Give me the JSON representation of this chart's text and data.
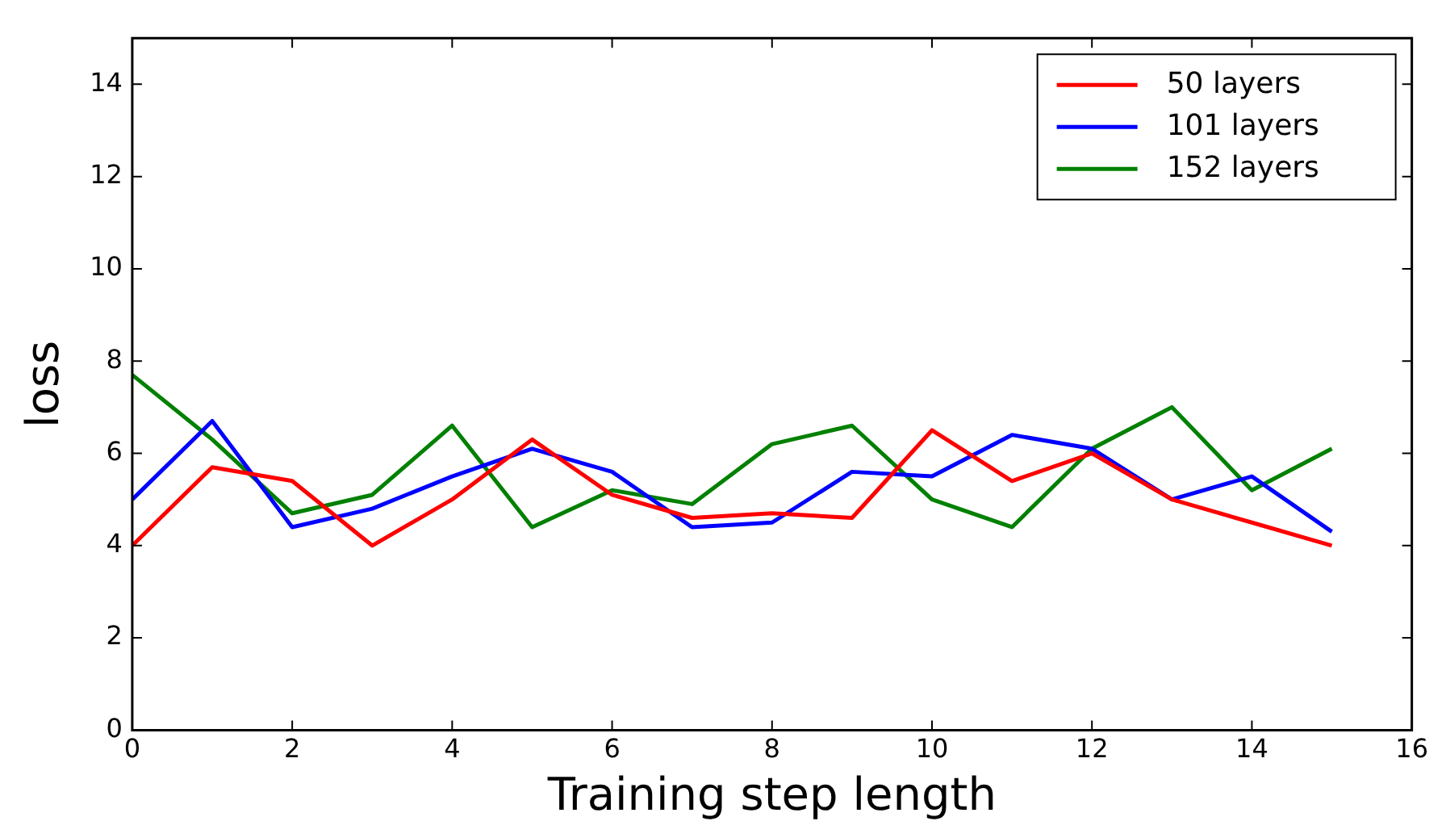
{
  "chart_data": {
    "type": "line",
    "xlabel": "Training step length",
    "ylabel": "loss",
    "x": [
      0,
      1,
      2,
      3,
      4,
      5,
      6,
      7,
      8,
      9,
      10,
      11,
      12,
      13,
      14,
      15
    ],
    "series": [
      {
        "name": "50 layers",
        "color": "#ff0000",
        "values": [
          4.0,
          5.7,
          5.4,
          4.0,
          5.0,
          6.3,
          5.1,
          4.6,
          4.7,
          4.6,
          6.5,
          5.4,
          6.0,
          5.0,
          4.5,
          4.0
        ]
      },
      {
        "name": "101 layers",
        "color": "#0000ff",
        "values": [
          5.0,
          6.7,
          4.4,
          4.8,
          5.5,
          6.1,
          5.6,
          4.4,
          4.5,
          5.6,
          5.5,
          6.4,
          6.1,
          5.0,
          5.5,
          4.3
        ]
      },
      {
        "name": "152 layers",
        "color": "#008000",
        "values": [
          7.7,
          6.3,
          4.7,
          5.1,
          6.6,
          4.4,
          5.2,
          4.9,
          6.2,
          6.6,
          5.0,
          4.4,
          6.1,
          7.0,
          5.2,
          6.1
        ]
      }
    ],
    "xlim": [
      0,
      16
    ],
    "xticks": [
      0,
      2,
      4,
      6,
      8,
      10,
      12,
      14,
      16
    ],
    "ylim": [
      0,
      15
    ],
    "yticks": [
      0,
      2,
      4,
      6,
      8,
      10,
      12,
      14
    ],
    "grid": false,
    "legend": "top right",
    "marker": "none",
    "line_style": "solid"
  }
}
